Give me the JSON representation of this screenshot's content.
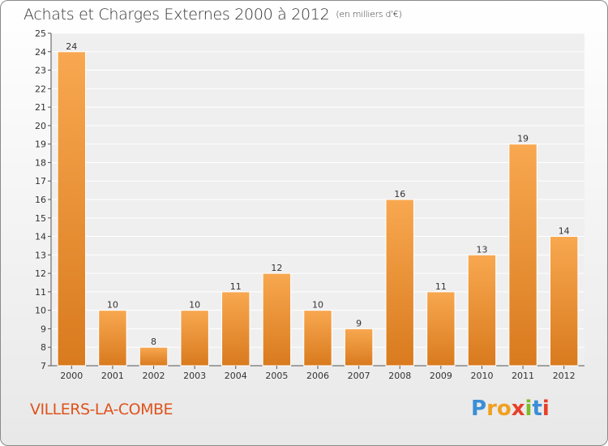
{
  "header": {
    "title": "Achats et Charges Externes 2000 à 2012",
    "subtitle": "(en milliers d'€)"
  },
  "footer": {
    "town": "VILLERS-LA-COMBE",
    "logo_letters": [
      "P",
      "r",
      "o",
      "x",
      "i",
      "t",
      "i"
    ],
    "logo_colors": [
      "#3a8fd6",
      "#f0a020",
      "#f0a020",
      "#e8402a",
      "#7dbb2a",
      "#3a8fd6",
      "#e8402a"
    ]
  },
  "colors": {
    "bar_light": "#f8a850",
    "bar_dark": "#d97a1e",
    "plot_bg": "#efefef",
    "grid": "#ffffff"
  },
  "chart_data": {
    "type": "bar",
    "title": "Achats et Charges Externes 2000 à 2012",
    "subtitle": "(en milliers d'€)",
    "categories": [
      "2000",
      "2001",
      "2002",
      "2003",
      "2004",
      "2005",
      "2006",
      "2007",
      "2008",
      "2009",
      "2010",
      "2011",
      "2012"
    ],
    "values": [
      24,
      10,
      8,
      10,
      11,
      12,
      10,
      9,
      16,
      11,
      13,
      19,
      14
    ],
    "ylim": [
      7,
      25
    ],
    "yticks": [
      7,
      8,
      9,
      10,
      11,
      12,
      13,
      14,
      15,
      16,
      17,
      18,
      19,
      20,
      21,
      22,
      23,
      24,
      25
    ],
    "xlabel": "",
    "ylabel": "",
    "grid": true,
    "data_labels": true
  }
}
